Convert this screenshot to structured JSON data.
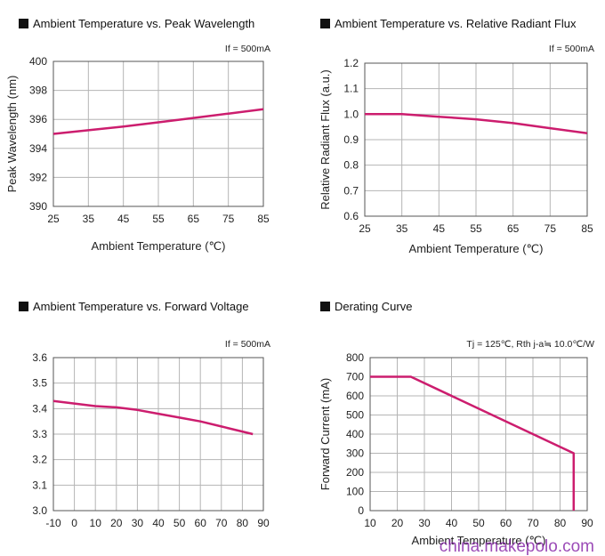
{
  "chart_data": [
    {
      "type": "line",
      "title": "Ambient Temperature vs. Peak Wavelength",
      "note": "If = 500mA",
      "xlabel": "Ambient Temperature (℃)",
      "ylabel": "Peak Wavelength (nm)",
      "xlim": [
        25,
        85
      ],
      "ylim": [
        390,
        400
      ],
      "xticks": [
        25,
        35,
        45,
        55,
        65,
        75,
        85
      ],
      "yticks": [
        390,
        392,
        394,
        396,
        398,
        400
      ],
      "grid": true,
      "series": [
        {
          "color": "#cc1d6e",
          "x": [
            25,
            35,
            45,
            55,
            65,
            75,
            85
          ],
          "y": [
            395.0,
            395.25,
            395.5,
            395.8,
            396.1,
            396.4,
            396.7
          ]
        }
      ]
    },
    {
      "type": "line",
      "title": "Ambient Temperature vs. Relative Radiant Flux",
      "note": "If = 500mA",
      "xlabel": "Ambient Temperature (℃)",
      "ylabel": "Relative Radiant Flux (a.u.)",
      "xlim": [
        25,
        85
      ],
      "ylim": [
        0.6,
        1.2
      ],
      "xticks": [
        25,
        35,
        45,
        55,
        65,
        75,
        85
      ],
      "yticks": [
        0.6,
        0.7,
        0.8,
        0.9,
        1.0,
        1.1,
        1.2
      ],
      "grid": true,
      "series": [
        {
          "color": "#cc1d6e",
          "x": [
            25,
            35,
            45,
            55,
            65,
            75,
            85
          ],
          "y": [
            1.0,
            1.0,
            0.99,
            0.98,
            0.965,
            0.945,
            0.925
          ]
        }
      ]
    },
    {
      "type": "line",
      "title": "Ambient Temperature vs. Forward Voltage",
      "note": "If = 500mA",
      "xlabel": "",
      "ylabel": "",
      "xlim": [
        -10,
        90
      ],
      "ylim": [
        3.0,
        3.6
      ],
      "xticks": [
        -10,
        0,
        10,
        20,
        30,
        40,
        50,
        60,
        70,
        80,
        90
      ],
      "yticks": [
        3.0,
        3.1,
        3.2,
        3.3,
        3.4,
        3.5,
        3.6
      ],
      "grid": true,
      "series": [
        {
          "color": "#cc1d6e",
          "x": [
            -10,
            0,
            10,
            20,
            30,
            40,
            50,
            60,
            70,
            80,
            85
          ],
          "y": [
            3.43,
            3.42,
            3.41,
            3.405,
            3.395,
            3.38,
            3.365,
            3.35,
            3.33,
            3.31,
            3.3
          ]
        }
      ]
    },
    {
      "type": "line",
      "title": "Derating Curve",
      "note": "Tj = 125℃, Rth j-a≒ 10.0℃/W",
      "xlabel": "Ambient Temperature (℃)",
      "ylabel": "Forward Current (mA)",
      "xlim": [
        10,
        90
      ],
      "ylim": [
        0,
        800
      ],
      "xticks": [
        10,
        20,
        30,
        40,
        50,
        60,
        70,
        80,
        90
      ],
      "yticks": [
        0,
        100,
        200,
        300,
        400,
        500,
        600,
        700,
        800
      ],
      "grid": true,
      "series": [
        {
          "color": "#cc1d6e",
          "x": [
            10,
            25,
            85,
            85
          ],
          "y": [
            700,
            700,
            300,
            0
          ]
        }
      ]
    }
  ],
  "watermark": "china.makepolo.com"
}
